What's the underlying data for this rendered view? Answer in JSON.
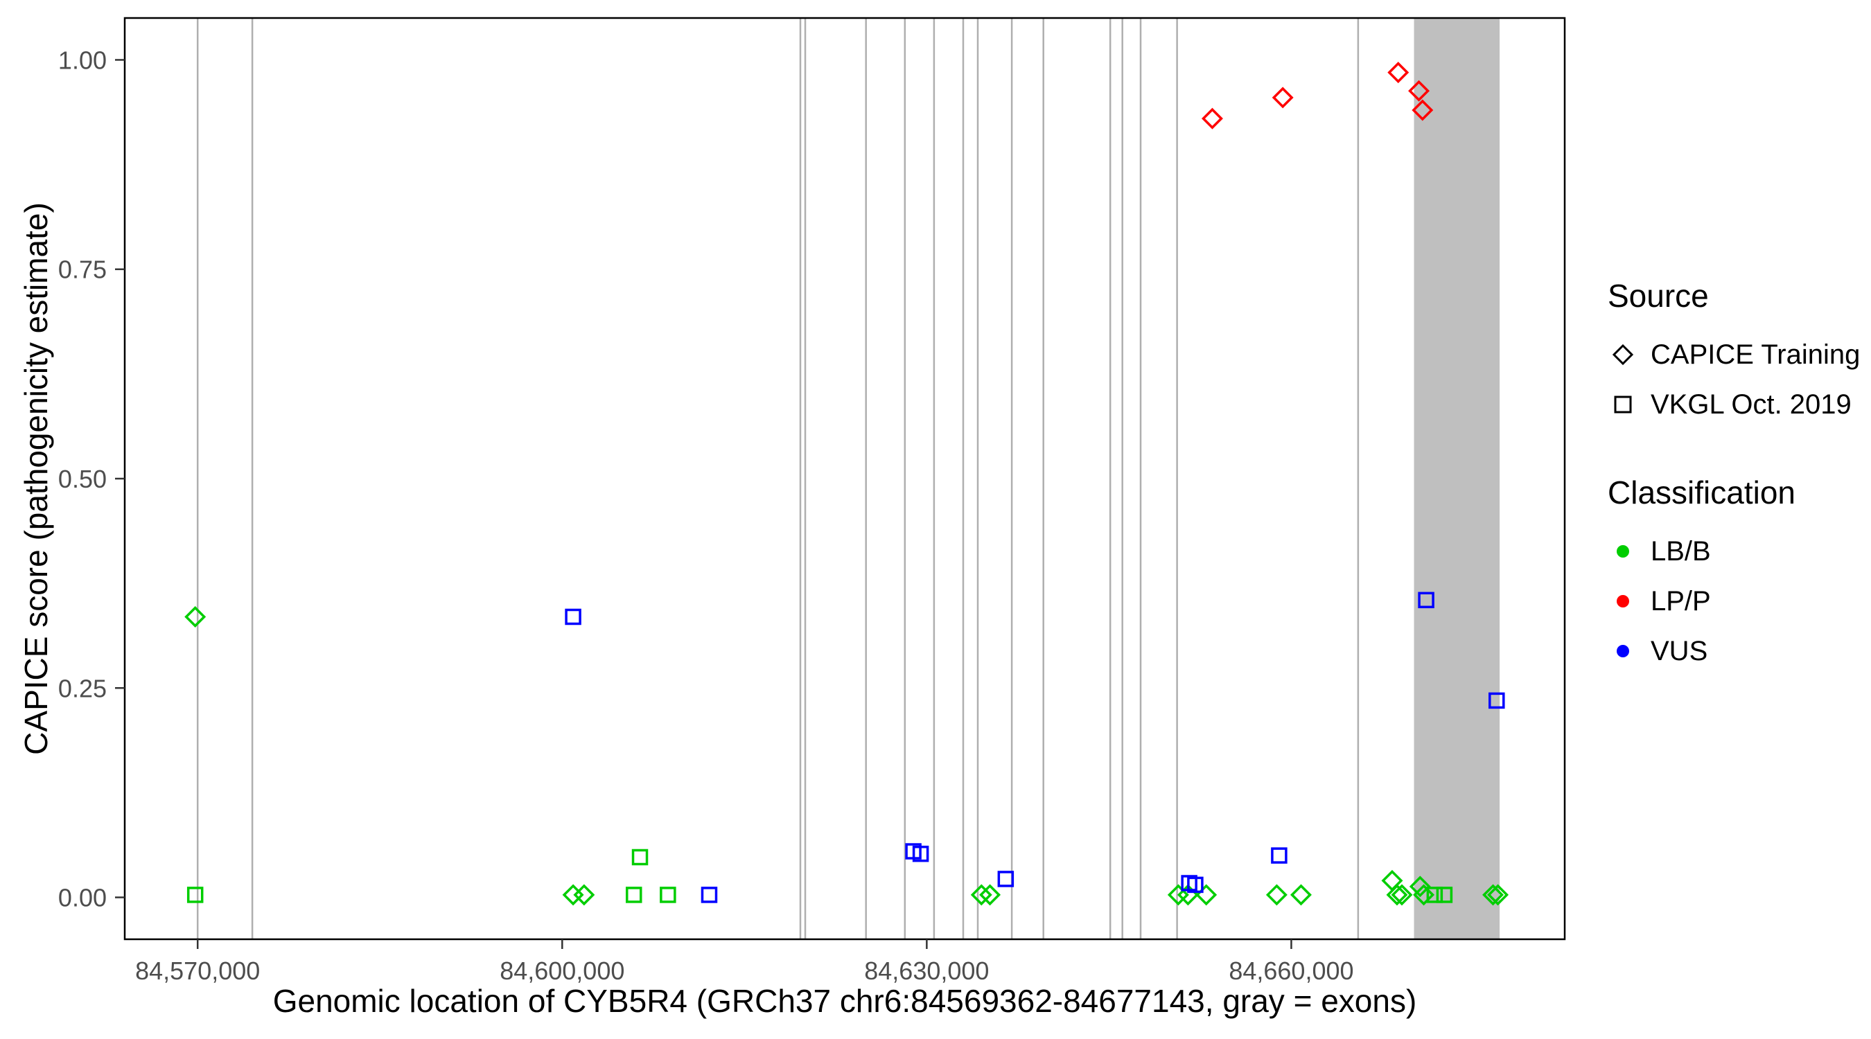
{
  "legend": {
    "source": {
      "title": "Source",
      "items": [
        {
          "label": "CAPICE Training",
          "shape": "diamond",
          "icon": "open-diamond-icon",
          "color": "#000000"
        },
        {
          "label": "VKGL Oct. 2019",
          "shape": "square",
          "icon": "open-square-icon",
          "color": "#000000"
        }
      ]
    },
    "classification": {
      "title": "Classification",
      "items": [
        {
          "label": "LB/B",
          "icon": "filled-circle-icon",
          "color": "#00CD00"
        },
        {
          "label": "LP/P",
          "icon": "filled-circle-icon",
          "color": "#FF0000"
        },
        {
          "label": "VUS",
          "icon": "filled-circle-icon",
          "color": "#0000FF"
        }
      ]
    }
  },
  "chart_data": {
    "type": "scatter",
    "title": "",
    "xlabel": "Genomic location of CYB5R4 (GRCh37 chr6:84569362-84677143, gray = exons)",
    "ylabel": "CAPICE score (pathogenicity estimate)",
    "xlim": [
      84564000,
      84682500
    ],
    "ylim": [
      -0.05,
      1.05
    ],
    "x_ticks": [
      84570000,
      84600000,
      84630000,
      84660000
    ],
    "x_tick_labels": [
      "84,570,000",
      "84,600,000",
      "84,630,000",
      "84,660,000"
    ],
    "y_ticks": [
      0.0,
      0.25,
      0.5,
      0.75,
      1.0
    ],
    "y_tick_labels": [
      "0.00",
      "0.25",
      "0.50",
      "0.75",
      "1.00"
    ],
    "grid": false,
    "legend_position": "right",
    "exons": {
      "note": "gray = exons",
      "line_color": "#AFAFAF",
      "band_color": "#BFBFBF",
      "lines": [
        84570000,
        84574500,
        84619600,
        84620000,
        84625000,
        84628200,
        84630600,
        84633000,
        84634200,
        84637000,
        84639600,
        84645100,
        84646100,
        84647600,
        84650600,
        84665500
      ],
      "band": {
        "start": 84670100,
        "end": 84677143
      }
    },
    "series": [
      {
        "name": "CAPICE Training",
        "classification": "LB/B",
        "shape": "diamond",
        "color": "#00CD00",
        "points": [
          [
            84569800,
            0.335
          ],
          [
            84600900,
            0.003
          ],
          [
            84601800,
            0.003
          ],
          [
            84634500,
            0.003
          ],
          [
            84635200,
            0.003
          ],
          [
            84650700,
            0.003
          ],
          [
            84651500,
            0.003
          ],
          [
            84653000,
            0.003
          ],
          [
            84658800,
            0.003
          ],
          [
            84660800,
            0.003
          ],
          [
            84668300,
            0.02
          ],
          [
            84668700,
            0.003
          ],
          [
            84669100,
            0.003
          ],
          [
            84670600,
            0.013
          ],
          [
            84670900,
            0.003
          ],
          [
            84676600,
            0.003
          ],
          [
            84677000,
            0.003
          ]
        ]
      },
      {
        "name": "CAPICE Training",
        "classification": "LP/P",
        "shape": "diamond",
        "color": "#FF0000",
        "points": [
          [
            84653500,
            0.93
          ],
          [
            84659300,
            0.955
          ],
          [
            84668800,
            0.985
          ],
          [
            84670500,
            0.963
          ],
          [
            84670800,
            0.94
          ]
        ]
      },
      {
        "name": "VKGL Oct. 2019",
        "classification": "LB/B",
        "shape": "square",
        "color": "#00CD00",
        "points": [
          [
            84569800,
            0.003
          ],
          [
            84605900,
            0.003
          ],
          [
            84606400,
            0.048
          ],
          [
            84608700,
            0.003
          ],
          [
            84671800,
            0.003
          ],
          [
            84672600,
            0.003
          ]
        ]
      },
      {
        "name": "VKGL Oct. 2019",
        "classification": "VUS",
        "shape": "square",
        "color": "#0000FF",
        "points": [
          [
            84600900,
            0.335
          ],
          [
            84612100,
            0.003
          ],
          [
            84628900,
            0.055
          ],
          [
            84629500,
            0.052
          ],
          [
            84636500,
            0.022
          ],
          [
            84651600,
            0.017
          ],
          [
            84652100,
            0.015
          ],
          [
            84659000,
            0.05
          ],
          [
            84671100,
            0.355
          ],
          [
            84676900,
            0.235
          ]
        ]
      }
    ]
  }
}
